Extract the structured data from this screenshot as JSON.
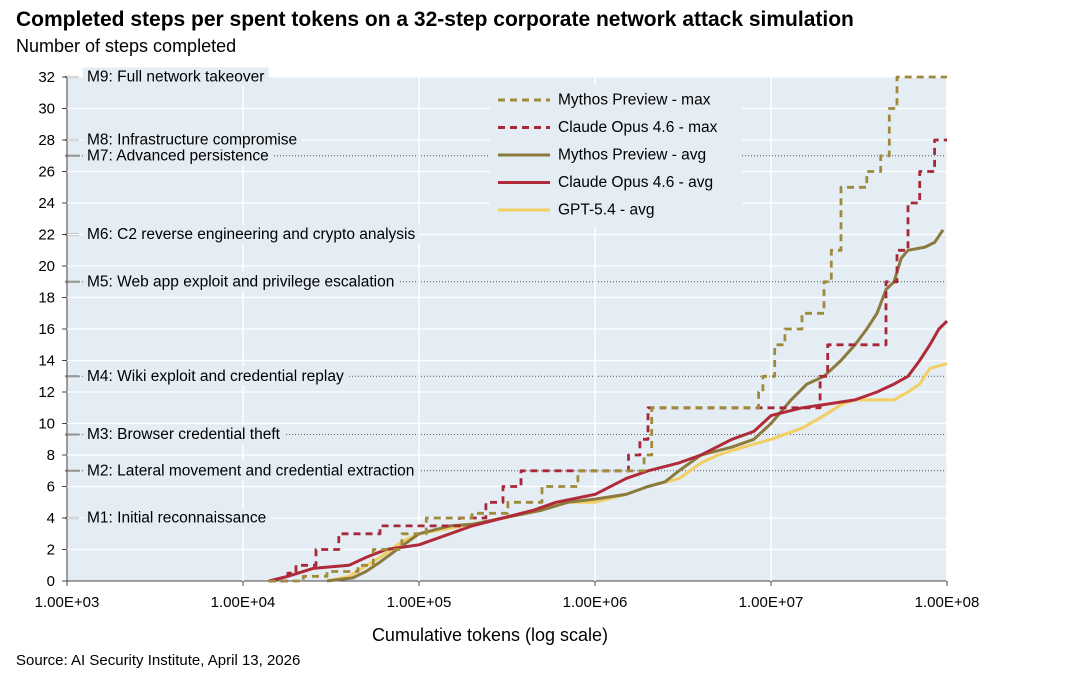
{
  "title": "Completed steps per spent tokens on a 32-step corporate network attack simulation",
  "subtitle": "Number of steps completed",
  "source": "Source: AI Security Institute, April 13, 2026",
  "chart_data": {
    "type": "line",
    "xscale": "log",
    "xlabel": "Cumulative tokens (log scale)",
    "ylabel": "Number of steps completed",
    "xlim": [
      1000,
      100000000
    ],
    "ylim": [
      0,
      32
    ],
    "x_ticks": [
      1000,
      10000,
      100000,
      1000000,
      10000000,
      100000000
    ],
    "x_tick_labels": [
      "1.00E+03",
      "1.00E+04",
      "1.00E+05",
      "1.00E+06",
      "1.00E+07",
      "1.00E+08"
    ],
    "y_ticks": [
      0,
      2,
      4,
      6,
      8,
      10,
      12,
      14,
      16,
      18,
      20,
      22,
      24,
      26,
      28,
      30,
      32
    ],
    "y_tick_labels": [
      "0",
      "2",
      "4",
      "6",
      "8",
      "10",
      "12",
      "14",
      "16",
      "18",
      "20",
      "22",
      "24",
      "26",
      "28",
      "30",
      "32"
    ],
    "background": "#e4edf4",
    "milestones": [
      {
        "label": "M1: Initial reconnaissance",
        "y": 4
      },
      {
        "label": "M2: Lateral movement and credential extraction",
        "y": 7
      },
      {
        "label": "M3: Browser credential theft",
        "y": 9.3
      },
      {
        "label": "M4: Wiki exploit and credential replay",
        "y": 13
      },
      {
        "label": "M5: Web app exploit and privilege escalation",
        "y": 19
      },
      {
        "label": "M6: C2 reverse engineering and crypto analysis",
        "y": 22
      },
      {
        "label": "M7: Advanced persistence",
        "y": 27
      },
      {
        "label": "M8: Infrastructure compromise",
        "y": 28
      },
      {
        "label": "M9: Full network takeover",
        "y": 32
      }
    ],
    "series": [
      {
        "name": "Mythos Preview - max",
        "color": "#a08a3c",
        "dash": true,
        "points": [
          [
            14000,
            0
          ],
          [
            22000,
            0
          ],
          [
            22000,
            0.3
          ],
          [
            30000,
            0.3
          ],
          [
            30000,
            0.6
          ],
          [
            45000,
            0.6
          ],
          [
            45000,
            1
          ],
          [
            55000,
            1
          ],
          [
            55000,
            2
          ],
          [
            80000,
            2
          ],
          [
            80000,
            3
          ],
          [
            110000,
            3
          ],
          [
            110000,
            4
          ],
          [
            200000,
            4
          ],
          [
            200000,
            4.3
          ],
          [
            320000,
            4.3
          ],
          [
            320000,
            5
          ],
          [
            500000,
            5
          ],
          [
            500000,
            6
          ],
          [
            800000,
            6
          ],
          [
            800000,
            7
          ],
          [
            1900000,
            7
          ],
          [
            1900000,
            8
          ],
          [
            2100000,
            8
          ],
          [
            2100000,
            11
          ],
          [
            8500000,
            11
          ],
          [
            8500000,
            12
          ],
          [
            9000000,
            12
          ],
          [
            9000000,
            13
          ],
          [
            10500000,
            13
          ],
          [
            10500000,
            15
          ],
          [
            12000000,
            15
          ],
          [
            12000000,
            16
          ],
          [
            15000000,
            16
          ],
          [
            15000000,
            17
          ],
          [
            20000000,
            17
          ],
          [
            20000000,
            19
          ],
          [
            22000000,
            19
          ],
          [
            22000000,
            21
          ],
          [
            25000000,
            21
          ],
          [
            25000000,
            25
          ],
          [
            35000000,
            25
          ],
          [
            35000000,
            26
          ],
          [
            42000000,
            26
          ],
          [
            42000000,
            27
          ],
          [
            47000000,
            27
          ],
          [
            47000000,
            30
          ],
          [
            52000000,
            30
          ],
          [
            52000000,
            32
          ],
          [
            100000000,
            32
          ]
        ]
      },
      {
        "name": "Claude Opus 4.6 - max",
        "color": "#a8283a",
        "dash": true,
        "points": [
          [
            14000,
            0
          ],
          [
            18000,
            0
          ],
          [
            18000,
            0.5
          ],
          [
            20000,
            0.5
          ],
          [
            20000,
            1
          ],
          [
            26000,
            1
          ],
          [
            26000,
            2
          ],
          [
            35000,
            2
          ],
          [
            35000,
            3
          ],
          [
            60000,
            3
          ],
          [
            60000,
            3.5
          ],
          [
            170000,
            3.5
          ],
          [
            170000,
            4
          ],
          [
            240000,
            4
          ],
          [
            240000,
            5
          ],
          [
            300000,
            5
          ],
          [
            300000,
            6
          ],
          [
            380000,
            6
          ],
          [
            380000,
            7
          ],
          [
            1550000,
            7
          ],
          [
            1550000,
            8
          ],
          [
            1800000,
            8
          ],
          [
            1800000,
            9
          ],
          [
            2000000,
            9
          ],
          [
            2000000,
            11
          ],
          [
            19000000,
            11
          ],
          [
            19000000,
            13
          ],
          [
            21000000,
            13
          ],
          [
            21000000,
            15
          ],
          [
            45000000,
            15
          ],
          [
            45000000,
            19
          ],
          [
            52000000,
            19
          ],
          [
            52000000,
            21
          ],
          [
            60000000,
            21
          ],
          [
            60000000,
            24
          ],
          [
            70000000,
            24
          ],
          [
            70000000,
            26
          ],
          [
            85000000,
            26
          ],
          [
            85000000,
            28
          ],
          [
            100000000,
            28
          ]
        ]
      },
      {
        "name": "Mythos Preview - avg",
        "color": "#8b7a3e",
        "dash": false,
        "points": [
          [
            30000,
            0
          ],
          [
            42000,
            0.2
          ],
          [
            50000,
            0.6
          ],
          [
            60000,
            1.2
          ],
          [
            75000,
            2
          ],
          [
            100000,
            3
          ],
          [
            150000,
            3.5
          ],
          [
            200000,
            3.6
          ],
          [
            300000,
            4
          ],
          [
            500000,
            4.5
          ],
          [
            700000,
            5
          ],
          [
            1000000,
            5.2
          ],
          [
            1500000,
            5.5
          ],
          [
            2000000,
            6
          ],
          [
            2500000,
            6.3
          ],
          [
            3000000,
            7
          ],
          [
            4000000,
            8
          ],
          [
            6000000,
            8.5
          ],
          [
            8000000,
            9
          ],
          [
            10000000,
            10
          ],
          [
            13000000,
            11.5
          ],
          [
            16000000,
            12.5
          ],
          [
            20000000,
            13
          ],
          [
            25000000,
            14
          ],
          [
            30000000,
            15
          ],
          [
            35000000,
            16
          ],
          [
            40000000,
            17
          ],
          [
            45000000,
            18.5
          ],
          [
            50000000,
            19
          ],
          [
            55000000,
            20.5
          ],
          [
            60000000,
            21
          ],
          [
            75000000,
            21.2
          ],
          [
            85000000,
            21.5
          ],
          [
            95000000,
            22.3
          ]
        ]
      },
      {
        "name": "Claude Opus 4.6 - avg",
        "color": "#b02a3a",
        "dash": false,
        "points": [
          [
            14000,
            0
          ],
          [
            18000,
            0.3
          ],
          [
            25000,
            0.8
          ],
          [
            40000,
            1
          ],
          [
            50000,
            1.5
          ],
          [
            65000,
            2
          ],
          [
            100000,
            2.3
          ],
          [
            150000,
            3
          ],
          [
            200000,
            3.5
          ],
          [
            300000,
            4
          ],
          [
            450000,
            4.5
          ],
          [
            600000,
            5
          ],
          [
            1000000,
            5.5
          ],
          [
            1500000,
            6.5
          ],
          [
            2000000,
            7
          ],
          [
            3000000,
            7.5
          ],
          [
            4000000,
            8
          ],
          [
            6000000,
            9
          ],
          [
            8000000,
            9.5
          ],
          [
            10000000,
            10.5
          ],
          [
            15000000,
            11
          ],
          [
            20000000,
            11.2
          ],
          [
            30000000,
            11.5
          ],
          [
            40000000,
            12
          ],
          [
            50000000,
            12.5
          ],
          [
            60000000,
            13
          ],
          [
            70000000,
            14
          ],
          [
            80000000,
            15
          ],
          [
            90000000,
            16
          ],
          [
            100000000,
            16.5
          ]
        ]
      },
      {
        "name": "GPT-5.4 - avg",
        "color": "#f2cf63",
        "dash": false,
        "points": [
          [
            30000,
            0
          ],
          [
            40000,
            0.3
          ],
          [
            60000,
            1.5
          ],
          [
            80000,
            2.5
          ],
          [
            100000,
            3
          ],
          [
            200000,
            3.6
          ],
          [
            300000,
            4
          ],
          [
            500000,
            4.5
          ],
          [
            600000,
            5
          ],
          [
            1000000,
            5
          ],
          [
            1500000,
            5.5
          ],
          [
            2000000,
            6
          ],
          [
            3000000,
            6.5
          ],
          [
            4000000,
            7.5
          ],
          [
            5000000,
            8
          ],
          [
            7000000,
            8.5
          ],
          [
            10000000,
            9
          ],
          [
            15000000,
            9.7
          ],
          [
            20000000,
            10.5
          ],
          [
            25000000,
            11.2
          ],
          [
            30000000,
            11.5
          ],
          [
            50000000,
            11.5
          ],
          [
            60000000,
            12
          ],
          [
            70000000,
            12.5
          ],
          [
            80000000,
            13.5
          ],
          [
            100000000,
            13.8
          ]
        ]
      }
    ]
  }
}
